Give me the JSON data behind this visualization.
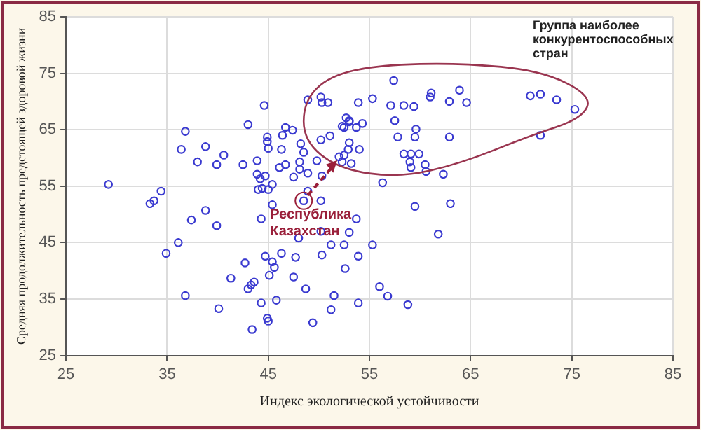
{
  "chart_data": {
    "type": "scatter",
    "xlabel": "Индекс экологической устойчивости",
    "ylabel": "Средняя продолжительность предстоящей здоровой жизни",
    "xlim": [
      25,
      85
    ],
    "xticks": [
      25,
      35,
      45,
      55,
      65,
      75,
      85
    ],
    "ylim": [
      25,
      85
    ],
    "yticks": [
      25,
      35,
      45,
      55,
      65,
      75,
      85
    ],
    "grid": true,
    "marker": "circle",
    "annotations": [
      "Группа наиболее конкурентоспособных стран",
      {
        "text": "Республика Казахстан",
        "x": 48.5,
        "y": 52.4
      }
    ],
    "series": [
      {
        "color": "#3a3ad0",
        "x": [
          29.2,
          44.6,
          36.8,
          36.4,
          38.8,
          38,
          39.9,
          40.6,
          42.5,
          43,
          43.9,
          44.9,
          44.9,
          45,
          43.9,
          44.2,
          44.4,
          45.4,
          44.7,
          46.4,
          46.7,
          47.4,
          46.3,
          46.1,
          46.7,
          47.5,
          48.2,
          48.5,
          48.1,
          48.1,
          48.9,
          49.8,
          48.9,
          48.9,
          50.2,
          50.3,
          50.9,
          50.2,
          51.1,
          50.3,
          52.3,
          53,
          52,
          52.3,
          53,
          52.9,
          57.4,
          55.3,
          53.9,
          57.1,
          58.4,
          59.4,
          61.1,
          61,
          62.9,
          63.9,
          64.6,
          70.9,
          71.9,
          73.5,
          75.3,
          71.9,
          52.7,
          53,
          52.5,
          53.7,
          54.3,
          57.5,
          57.8,
          59.6,
          59.5,
          62.9,
          54,
          58.4,
          59.1,
          59.9,
          59,
          59.1,
          60.5,
          60.6,
          62.3,
          56.3,
          52.5,
          53.2,
          33.3,
          33.7,
          34.4,
          38.8,
          37.4,
          39.9,
          44.3,
          45.4,
          44,
          45,
          48.5,
          50.2,
          50.2,
          53,
          36.1,
          34.9,
          48,
          46.3,
          47.7,
          50.3,
          42.7,
          44.7,
          45.4,
          45.6,
          45.1,
          47.5,
          41.3,
          43.6,
          43.3,
          43,
          51.2,
          52.5,
          52.6,
          48.7,
          51.5,
          51.2,
          36.8,
          44.3,
          45.8,
          40.1,
          44.9,
          45,
          43.4,
          49.4,
          59.5,
          63,
          53.7,
          61.8,
          55.3,
          53.9,
          56,
          56.8,
          53.9,
          58.8
        ],
        "values": [
          55.3,
          69.3,
          64.7,
          61.5,
          62,
          59.3,
          58.8,
          60.5,
          58.8,
          65.9,
          59.5,
          63.7,
          62.9,
          61.7,
          57.1,
          56.3,
          54.6,
          55.3,
          56.8,
          64,
          65.4,
          64.9,
          61.5,
          58.3,
          58.8,
          56.6,
          62.5,
          61,
          59.3,
          58,
          57.3,
          59.5,
          54.1,
          70.3,
          70.8,
          69.8,
          69.8,
          63.2,
          63.9,
          56.8,
          65.6,
          66.6,
          60.2,
          59.3,
          62.7,
          61.5,
          73.7,
          70.5,
          69.8,
          69.3,
          69.3,
          69.1,
          71.5,
          70.8,
          70,
          72,
          69.8,
          71,
          71.3,
          70.3,
          68.6,
          64,
          67.1,
          66.4,
          65.4,
          65.4,
          66.1,
          66.6,
          63.7,
          65.1,
          63.7,
          63.7,
          61.5,
          60.7,
          60.7,
          60.7,
          59.3,
          58.3,
          58.8,
          57.6,
          57.1,
          55.6,
          60.5,
          59,
          51.9,
          52.4,
          54.1,
          50.7,
          49,
          48,
          49.2,
          51.7,
          54.4,
          54.4,
          52.4,
          52.4,
          47,
          46.8,
          45,
          43.1,
          45.8,
          43.1,
          42.4,
          42.8,
          41.4,
          42.6,
          41.6,
          40.6,
          39.2,
          38.9,
          38.7,
          38,
          37.5,
          36.8,
          44.6,
          44.6,
          40.4,
          36.8,
          35.6,
          33.1,
          35.6,
          34.3,
          34.8,
          33.3,
          31.6,
          31.1,
          29.6,
          30.8,
          51.4,
          51.9,
          49.2,
          46.5,
          44.6,
          42.6,
          37.2,
          35.5,
          34.3,
          34
        ]
      }
    ]
  }
}
